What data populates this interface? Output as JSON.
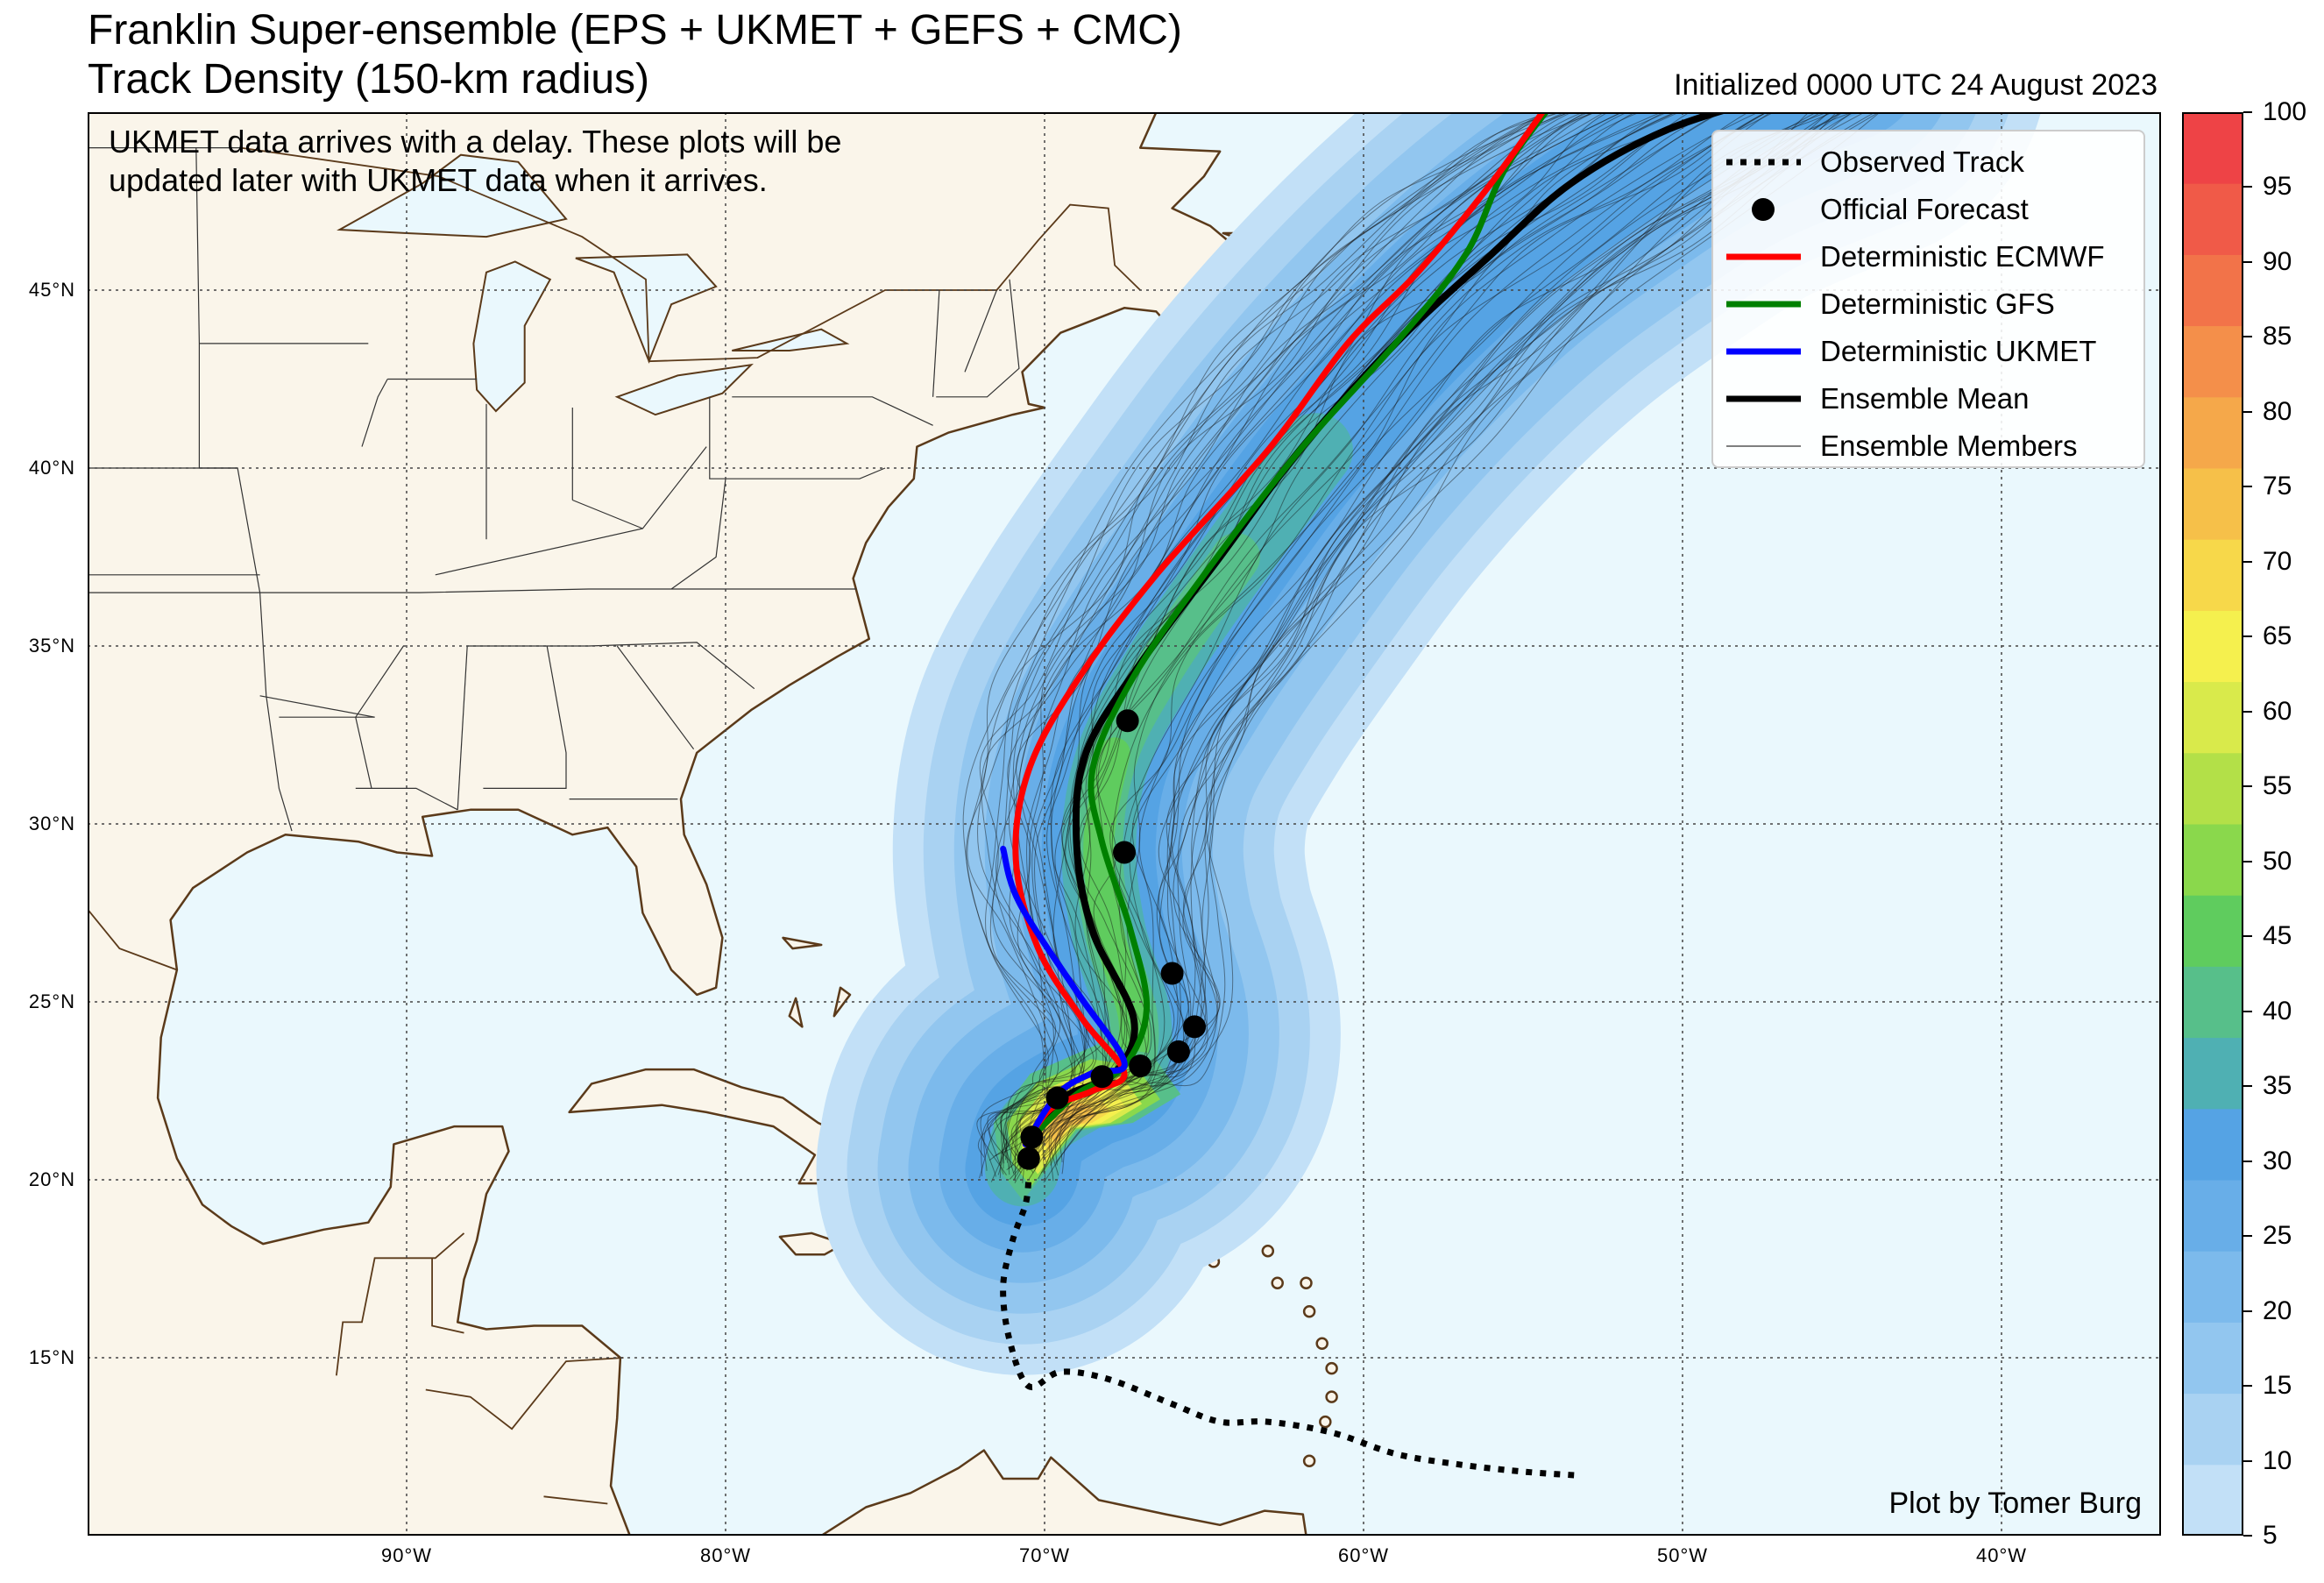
{
  "header": {
    "title_line1": "Franklin Super-ensemble (EPS + UKMET + GEFS + CMC)",
    "title_line2": "Track Density (150-km radius)",
    "initialized": "Initialized 0000 UTC 24 August 2023"
  },
  "note": {
    "line1": "UKMET data arrives with a delay. These plots will be",
    "line2": "updated later with UKMET data when it arrives."
  },
  "credit": "Plot by Tomer Burg",
  "legend": [
    {
      "label": "Observed Track",
      "style": "dotted",
      "color": "#000000"
    },
    {
      "label": "Official Forecast",
      "style": "dot",
      "color": "#000000"
    },
    {
      "label": "Deterministic ECMWF",
      "style": "line",
      "color": "#ff0000"
    },
    {
      "label": "Deterministic GFS",
      "style": "line",
      "color": "#008000"
    },
    {
      "label": "Deterministic UKMET",
      "style": "line",
      "color": "#0000ff"
    },
    {
      "label": "Ensemble Mean",
      "style": "line",
      "color": "#000000"
    },
    {
      "label": "Ensemble Members",
      "style": "thin",
      "color": "#555555"
    }
  ],
  "axes": {
    "lat_labels": [
      {
        "value": 45,
        "text": "45°N"
      },
      {
        "value": 40,
        "text": "40°N"
      },
      {
        "value": 35,
        "text": "35°N"
      },
      {
        "value": 30,
        "text": "30°N"
      },
      {
        "value": 25,
        "text": "25°N"
      },
      {
        "value": 20,
        "text": "20°N"
      },
      {
        "value": 15,
        "text": "15°N"
      }
    ],
    "lon_labels": [
      {
        "value": -90,
        "text": "90°W"
      },
      {
        "value": -80,
        "text": "80°W"
      },
      {
        "value": -70,
        "text": "70°W"
      },
      {
        "value": -60,
        "text": "60°W"
      },
      {
        "value": -50,
        "text": "50°W"
      },
      {
        "value": -40,
        "text": "40°W"
      }
    ],
    "extent": {
      "lon_min": -100,
      "lon_max": -35,
      "lat_min": 10,
      "lat_max": 50
    }
  },
  "colorbar": {
    "ticks": [
      5,
      10,
      15,
      20,
      25,
      30,
      35,
      40,
      45,
      50,
      55,
      60,
      65,
      70,
      75,
      80,
      85,
      90,
      95,
      100
    ],
    "colors": [
      "#c2e0f7",
      "#a9d2f2",
      "#92c6ef",
      "#7cbaec",
      "#68aee8",
      "#55a3e4",
      "#4fb0b3",
      "#57bf8a",
      "#5fcc5e",
      "#8ad84c",
      "#b3e048",
      "#d9ea4b",
      "#f5f04e",
      "#f7d84a",
      "#f6c049",
      "#f5a84a",
      "#f48f4a",
      "#f27349",
      "#f05a48",
      "#ee4346"
    ],
    "vmin": 5,
    "vmax": 100
  },
  "tracks": {
    "observed": [
      [
        -53.4,
        11.7
      ],
      [
        -55,
        11.8
      ],
      [
        -57,
        12.0
      ],
      [
        -59,
        12.3
      ],
      [
        -61,
        12.9
      ],
      [
        -63,
        13.2
      ],
      [
        -64.5,
        13.2
      ],
      [
        -66,
        13.7
      ],
      [
        -68,
        14.4
      ],
      [
        -69.5,
        14.6
      ],
      [
        -70.5,
        14.2
      ],
      [
        -71.1,
        15.5
      ],
      [
        -71.3,
        17.0
      ],
      [
        -71.0,
        18.3
      ],
      [
        -70.6,
        19.3
      ],
      [
        -70.5,
        20.0
      ]
    ],
    "official_forecast": [
      [
        -70.5,
        20.6
      ],
      [
        -70.4,
        21.2
      ],
      [
        -69.6,
        22.3
      ],
      [
        -68.2,
        22.9
      ],
      [
        -67.0,
        23.2
      ],
      [
        -65.8,
        23.6
      ],
      [
        -65.3,
        24.3
      ],
      [
        -66.0,
        25.8
      ],
      [
        -67.5,
        29.2
      ],
      [
        -67.4,
        32.9
      ]
    ],
    "ecmwf": [
      [
        -70.6,
        21.0
      ],
      [
        -69.8,
        22.0
      ],
      [
        -68.5,
        22.5
      ],
      [
        -67.5,
        23.0
      ],
      [
        -68.8,
        24.5
      ],
      [
        -70.2,
        26.5
      ],
      [
        -70.9,
        29.0
      ],
      [
        -70.5,
        31.5
      ],
      [
        -69.0,
        34.0
      ],
      [
        -66.5,
        37.0
      ],
      [
        -63.0,
        40.5
      ],
      [
        -60.5,
        43.5
      ],
      [
        -58.3,
        45.5
      ],
      [
        -56.0,
        48.0
      ],
      [
        -54.0,
        50.5
      ]
    ],
    "gfs": [
      [
        -70.4,
        21.2
      ],
      [
        -69.0,
        22.4
      ],
      [
        -67.5,
        23.2
      ],
      [
        -66.8,
        24.8
      ],
      [
        -67.3,
        27.0
      ],
      [
        -68.2,
        29.5
      ],
      [
        -68.5,
        31.5
      ],
      [
        -67.3,
        34.0
      ],
      [
        -65.0,
        37.0
      ],
      [
        -62.0,
        40.5
      ],
      [
        -59.0,
        43.5
      ],
      [
        -56.8,
        46.0
      ],
      [
        -55.5,
        48.5
      ],
      [
        -53.4,
        51.0
      ]
    ],
    "ukmet": [
      [
        -70.6,
        21.0
      ],
      [
        -69.6,
        22.4
      ],
      [
        -68.5,
        23.0
      ],
      [
        -67.5,
        23.3
      ],
      [
        -69.0,
        25.3
      ],
      [
        -70.8,
        27.8
      ],
      [
        -71.3,
        29.3
      ]
    ],
    "mean": [
      [
        -70.5,
        21.0
      ],
      [
        -69.4,
        22.3
      ],
      [
        -67.8,
        23.0
      ],
      [
        -67.2,
        24.5
      ],
      [
        -68.5,
        27.0
      ],
      [
        -69.0,
        29.5
      ],
      [
        -68.7,
        32.0
      ],
      [
        -67.0,
        34.5
      ],
      [
        -64.5,
        37.5
      ],
      [
        -62.0,
        40.5
      ],
      [
        -59.0,
        43.5
      ],
      [
        -56.0,
        46.0
      ],
      [
        -53.5,
        48.0
      ],
      [
        -50.5,
        49.5
      ],
      [
        -47.0,
        50.5
      ]
    ]
  }
}
